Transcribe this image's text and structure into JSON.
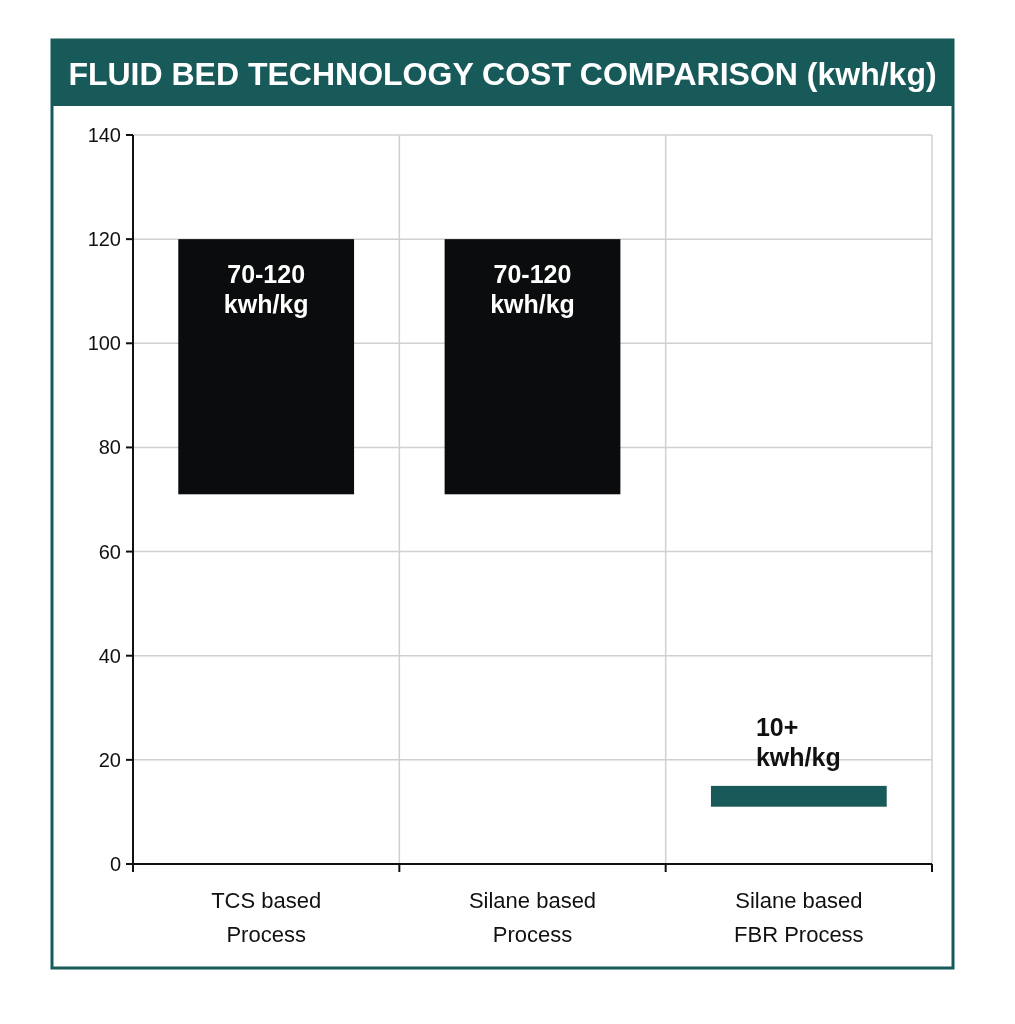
{
  "chart_data": {
    "type": "bar",
    "title": "FLUID BED TECHNOLOGY COST COMPARISON (kwh/kg)",
    "categories": [
      "TCS based Process",
      "Silane based Process",
      "Silane based FBR Process"
    ],
    "values": [
      49,
      49,
      4
    ],
    "base": [
      71,
      71,
      11
    ],
    "colors": [
      "#0b0c0d",
      "#0b0c0d",
      "#185a5a"
    ],
    "value_labels": [
      "70-120 kwh/kg",
      "70-120 kwh/kg",
      "10+ kwh/kg"
    ],
    "ylim": [
      0,
      140
    ],
    "yticks": [
      0,
      20,
      40,
      60,
      80,
      100,
      120,
      140
    ],
    "grid": true
  }
}
